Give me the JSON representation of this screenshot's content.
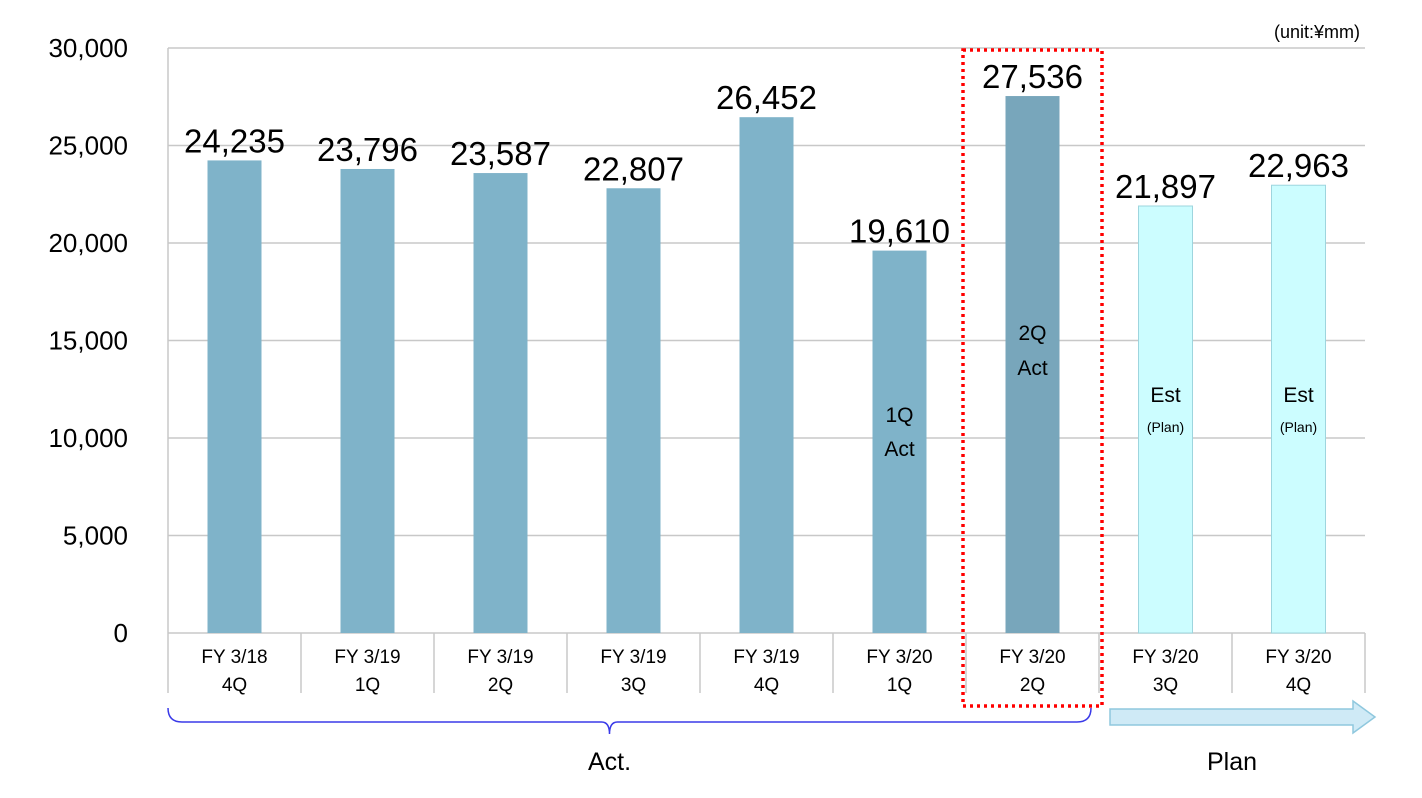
{
  "unit_label": "(unit:¥mm)",
  "group_labels": {
    "actual": "Act.",
    "plan": "Plan"
  },
  "colors": {
    "actual_bar": "#7fb3c9",
    "highlight_bar": "#78a6bb",
    "plan_bar": "#ccfdff",
    "plan_bar_border": "#9ed5de",
    "highlight_box": "#ff0000",
    "brace": "#3a3ae8",
    "arrow_fill": "#cfeaf6",
    "arrow_border": "#8fc8de",
    "grid": "#c8c8c8"
  },
  "chart_data": {
    "type": "bar",
    "title": "",
    "xlabel": "",
    "ylabel": "",
    "ylim": [
      0,
      30000
    ],
    "yticks": [
      0,
      5000,
      10000,
      15000,
      20000,
      25000,
      30000
    ],
    "ytick_labels": [
      "0",
      "5,000",
      "10,000",
      "15,000",
      "20,000",
      "25,000",
      "30,000"
    ],
    "grid": true,
    "categories": [
      [
        "FY 3/18",
        "4Q"
      ],
      [
        "FY 3/19",
        "1Q"
      ],
      [
        "FY 3/19",
        "2Q"
      ],
      [
        "FY 3/19",
        "3Q"
      ],
      [
        "FY 3/19",
        "4Q"
      ],
      [
        "FY 3/20",
        "1Q"
      ],
      [
        "FY 3/20",
        "2Q"
      ],
      [
        "FY 3/20",
        "3Q"
      ],
      [
        "FY 3/20",
        "4Q"
      ]
    ],
    "values": [
      24235,
      23796,
      23587,
      22807,
      26452,
      19610,
      27536,
      21897,
      22963
    ],
    "value_labels": [
      "24,235",
      "23,796",
      "23,587",
      "22,807",
      "26,452",
      "19,610",
      "27,536",
      "21,897",
      "22,963"
    ],
    "bar_kind": [
      "actual",
      "actual",
      "actual",
      "actual",
      "actual",
      "actual",
      "highlight",
      "plan",
      "plan"
    ],
    "in_bar_labels": [
      null,
      null,
      null,
      null,
      null,
      {
        "main": [
          "1Q",
          "Act"
        ],
        "sub": ""
      },
      {
        "main": [
          "2Q",
          "Act"
        ],
        "sub": ""
      },
      {
        "main": [
          "Est"
        ],
        "sub": "(Plan)"
      },
      {
        "main": [
          "Est"
        ],
        "sub": "(Plan)"
      }
    ],
    "highlighted_index": 6
  }
}
